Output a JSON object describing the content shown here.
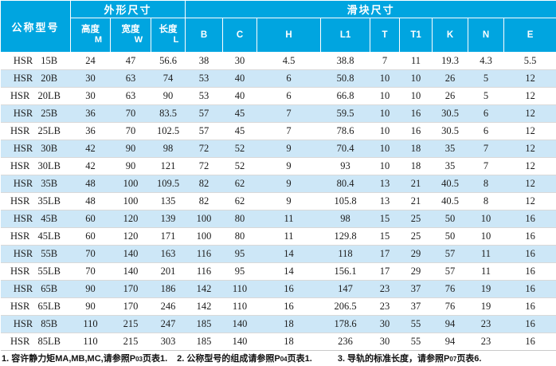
{
  "table": {
    "model_header": "公称型号",
    "group_headers": [
      {
        "label": "外形尺寸",
        "span": 3
      },
      {
        "label": "滑块尺寸",
        "span": 9
      }
    ],
    "sub_headers": [
      {
        "cn": "高度",
        "latin": "M"
      },
      {
        "cn": "宽度",
        "latin": "W"
      },
      {
        "cn": "长度",
        "latin": "L"
      },
      {
        "latin": "B"
      },
      {
        "latin": "C"
      },
      {
        "latin": "H"
      },
      {
        "latin": "L1"
      },
      {
        "latin": "T"
      },
      {
        "latin": "T1"
      },
      {
        "latin": "K"
      },
      {
        "latin": "N"
      },
      {
        "latin": "E"
      }
    ],
    "rows": [
      {
        "model": "HSR 15B",
        "values": [
          "24",
          "47",
          "56.6",
          "38",
          "30",
          "4.5",
          "38.8",
          "7",
          "11",
          "19.3",
          "4.3",
          "5.5"
        ]
      },
      {
        "model": "HSR 20B",
        "values": [
          "30",
          "63",
          "74",
          "53",
          "40",
          "6",
          "50.8",
          "10",
          "10",
          "26",
          "5",
          "12"
        ]
      },
      {
        "model": "HSR 20LB",
        "values": [
          "30",
          "63",
          "90",
          "53",
          "40",
          "6",
          "66.8",
          "10",
          "10",
          "26",
          "5",
          "12"
        ]
      },
      {
        "model": "HSR 25B",
        "values": [
          "36",
          "70",
          "83.5",
          "57",
          "45",
          "7",
          "59.5",
          "10",
          "16",
          "30.5",
          "6",
          "12"
        ]
      },
      {
        "model": "HSR 25LB",
        "values": [
          "36",
          "70",
          "102.5",
          "57",
          "45",
          "7",
          "78.6",
          "10",
          "16",
          "30.5",
          "6",
          "12"
        ]
      },
      {
        "model": "HSR 30B",
        "values": [
          "42",
          "90",
          "98",
          "72",
          "52",
          "9",
          "70.4",
          "10",
          "18",
          "35",
          "7",
          "12"
        ]
      },
      {
        "model": "HSR 30LB",
        "values": [
          "42",
          "90",
          "121",
          "72",
          "52",
          "9",
          "93",
          "10",
          "18",
          "35",
          "7",
          "12"
        ]
      },
      {
        "model": "HSR 35B",
        "values": [
          "48",
          "100",
          "109.5",
          "82",
          "62",
          "9",
          "80.4",
          "13",
          "21",
          "40.5",
          "8",
          "12"
        ]
      },
      {
        "model": "HSR 35LB",
        "values": [
          "48",
          "100",
          "135",
          "82",
          "62",
          "9",
          "105.8",
          "13",
          "21",
          "40.5",
          "8",
          "12"
        ]
      },
      {
        "model": "HSR 45B",
        "values": [
          "60",
          "120",
          "139",
          "100",
          "80",
          "11",
          "98",
          "15",
          "25",
          "50",
          "10",
          "16"
        ]
      },
      {
        "model": "HSR 45LB",
        "values": [
          "60",
          "120",
          "171",
          "100",
          "80",
          "11",
          "129.8",
          "15",
          "25",
          "50",
          "10",
          "16"
        ]
      },
      {
        "model": "HSR 55B",
        "values": [
          "70",
          "140",
          "163",
          "116",
          "95",
          "14",
          "118",
          "17",
          "29",
          "57",
          "11",
          "16"
        ]
      },
      {
        "model": "HSR 55LB",
        "values": [
          "70",
          "140",
          "201",
          "116",
          "95",
          "14",
          "156.1",
          "17",
          "29",
          "57",
          "11",
          "16"
        ]
      },
      {
        "model": "HSR 65B",
        "values": [
          "90",
          "170",
          "186",
          "142",
          "110",
          "16",
          "147",
          "23",
          "37",
          "76",
          "19",
          "16"
        ]
      },
      {
        "model": "HSR 65LB",
        "values": [
          "90",
          "170",
          "246",
          "142",
          "110",
          "16",
          "206.5",
          "23",
          "37",
          "76",
          "19",
          "16"
        ]
      },
      {
        "model": "HSR 85B",
        "values": [
          "110",
          "215",
          "247",
          "185",
          "140",
          "18",
          "178.6",
          "30",
          "55",
          "94",
          "23",
          "16"
        ]
      },
      {
        "model": "HSR 85LB",
        "values": [
          "110",
          "215",
          "303",
          "185",
          "140",
          "18",
          "236",
          "30",
          "55",
          "94",
          "23",
          "16"
        ]
      }
    ]
  },
  "footnotes": [
    {
      "pre": "1. 容许静力矩MA,MB,MC,请参照P",
      "page": "03",
      "post": "页表1."
    },
    {
      "pre": "2. 公称型号的组成请参照P",
      "page": "04",
      "post": "页表1."
    },
    {
      "pre": "3. 导轨的标准长度，请参照P",
      "page": "07",
      "post": "页表6."
    }
  ],
  "colors": {
    "header_bg": "#00a5e0",
    "stripe_bg": "#cde7f7",
    "header_text": "#ffffff",
    "body_text": "#1c1c1c"
  }
}
